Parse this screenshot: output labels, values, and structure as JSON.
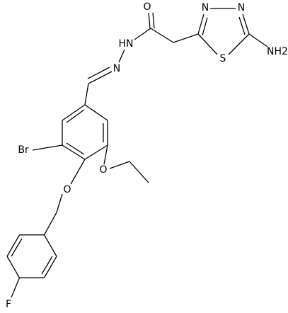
{
  "atoms": [
    "O",
    "HN",
    "N",
    "N",
    "N",
    "S",
    "NH2",
    "Br",
    "O",
    "O",
    "F"
  ]
}
